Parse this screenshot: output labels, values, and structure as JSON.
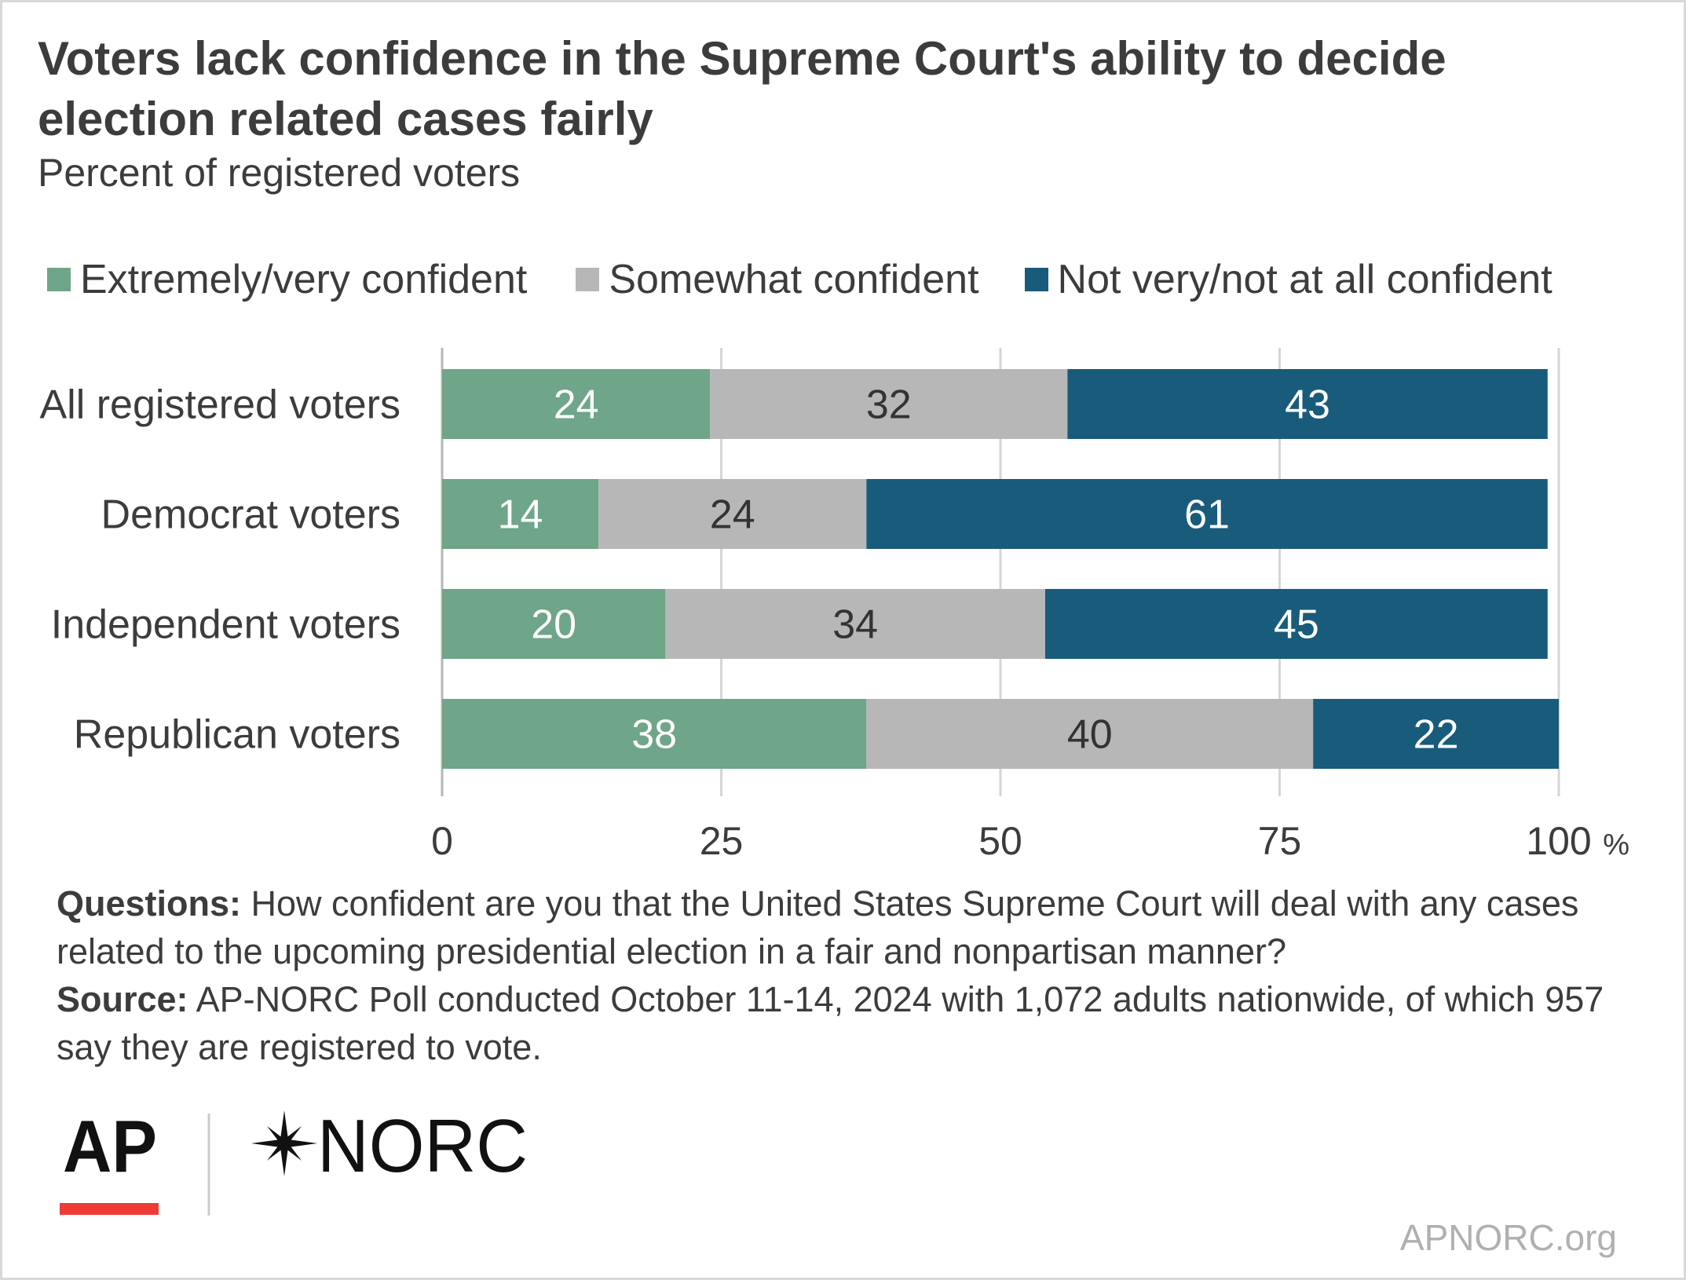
{
  "title": "Voters lack confidence in the Supreme Court's ability to decide election related cases fairly",
  "subtitle": "Percent of registered voters",
  "legend": [
    {
      "label": "Extremely/very confident",
      "color": "#6fa588"
    },
    {
      "label": "Somewhat confident",
      "color": "#b7b7b7"
    },
    {
      "label": "Not very/not at all confident",
      "color": "#195b7b"
    }
  ],
  "chart_data": {
    "type": "bar",
    "orientation": "horizontal",
    "stacked": true,
    "categories": [
      "All registered voters",
      "Democrat voters",
      "Independent voters",
      "Republican voters"
    ],
    "series": [
      {
        "name": "Extremely/very confident",
        "values": [
          24,
          14,
          20,
          38
        ],
        "color": "#6fa588",
        "label_color": "#ffffff"
      },
      {
        "name": "Somewhat confident",
        "values": [
          32,
          24,
          34,
          40
        ],
        "color": "#b7b7b7",
        "label_color": "#333333"
      },
      {
        "name": "Not very/not at all confident",
        "values": [
          43,
          61,
          45,
          22
        ],
        "color": "#195b7b",
        "label_color": "#ffffff"
      }
    ],
    "xlim": [
      0,
      100
    ],
    "x_ticks": [
      "0",
      "25",
      "50",
      "75",
      "100"
    ],
    "x_unit": "%",
    "grid": true
  },
  "notes": {
    "questions_label": "Questions:",
    "questions_text": " How confident are you that the United States Supreme Court will deal with any cases related to the upcoming presidential election in a fair and nonpartisan manner?",
    "source_label": "Source:",
    "source_text": " AP-NORC Poll conducted October 11-14, 2024 with 1,072 adults nationwide, of which 957 say they are registered to vote."
  },
  "logos": {
    "ap": "AP",
    "norc": "NORC"
  },
  "footer_url": "APNORC.org"
}
